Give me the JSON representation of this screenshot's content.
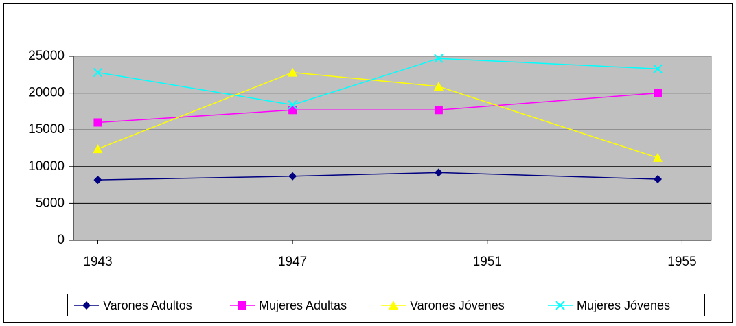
{
  "chart_data": {
    "type": "line",
    "x": [
      1943,
      1947,
      1950,
      1954.5
    ],
    "xlim": [
      1942.5,
      1955.6
    ],
    "xticks": [
      1943,
      1947,
      1951,
      1955
    ],
    "ylim": [
      0,
      25000
    ],
    "yticks": [
      0,
      5000,
      10000,
      15000,
      20000,
      25000
    ],
    "grid": true,
    "legend": "bottom",
    "series": [
      {
        "name": "Varones Adultos",
        "color": "#000080",
        "marker": "diamond",
        "values": [
          8200,
          8700,
          9200,
          8300
        ]
      },
      {
        "name": "Mujeres Adultas",
        "color": "#ff00ff",
        "marker": "square",
        "values": [
          16000,
          17700,
          17700,
          20000
        ]
      },
      {
        "name": "Varones Jóvenes",
        "color": "#ffff00",
        "marker": "triangle",
        "values": [
          12400,
          22800,
          20900,
          11200
        ]
      },
      {
        "name": "Mujeres Jóvenes",
        "color": "#00ffff",
        "marker": "x",
        "values": [
          22800,
          18400,
          24700,
          23300
        ]
      }
    ]
  }
}
